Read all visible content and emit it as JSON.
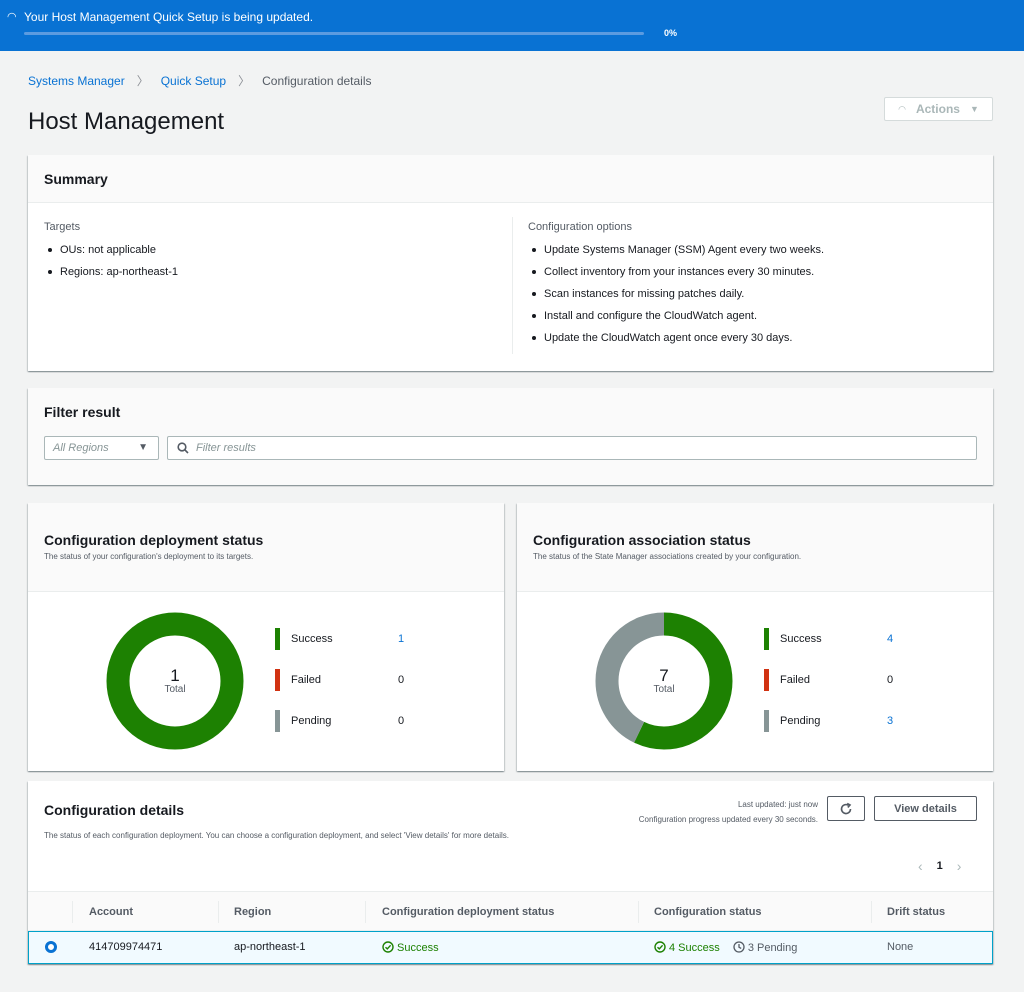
{
  "banner": {
    "message": "Your Host Management Quick Setup is being updated.",
    "progress_text": "0%",
    "progress": 0
  },
  "breadcrumb": [
    "Systems Manager",
    "Quick Setup",
    "Configuration details"
  ],
  "page_title": "Host Management",
  "actions_label": "Actions",
  "summary": {
    "title": "Summary",
    "targets_label": "Targets",
    "targets": [
      "OUs: not applicable",
      "Regions: ap-northeast-1"
    ],
    "options_label": "Configuration options",
    "options": [
      "Update Systems Manager (SSM) Agent every two weeks.",
      "Collect inventory from your instances every 30 minutes.",
      "Scan instances for missing patches daily.",
      "Install and configure the CloudWatch agent.",
      "Update the CloudWatch agent once every 30 days."
    ]
  },
  "filter": {
    "title": "Filter result",
    "region_placeholder": "All Regions",
    "search_placeholder": "Filter results"
  },
  "deployment_status": {
    "title": "Configuration deployment status",
    "subtitle": "The status of your configuration's deployment to its targets.",
    "total": "1",
    "total_label": "Total",
    "success_label": "Success",
    "success": 1,
    "failed_label": "Failed",
    "failed": 0,
    "pending_label": "Pending",
    "pending": 0
  },
  "association_status": {
    "title": "Configuration association status",
    "subtitle": "The status of the State Manager associations created by your configuration.",
    "total": "7",
    "total_label": "Total",
    "success_label": "Success",
    "success": 4,
    "failed_label": "Failed",
    "failed": 0,
    "pending_label": "Pending",
    "pending": 3
  },
  "colors": {
    "success": "#1d8102",
    "failed": "#d13212",
    "pending": "#879596",
    "accent": "#0972d3"
  },
  "details": {
    "title": "Configuration details",
    "description": "The status of each configuration deployment. You can choose a configuration deployment, and select 'View details' for more details.",
    "last_updated": "Last updated: just now",
    "progress_note": "Configuration progress updated every 30 seconds.",
    "view_details_label": "View details",
    "page": "1",
    "columns": [
      "Account",
      "Region",
      "Configuration deployment status",
      "Configuration status",
      "Drift status"
    ],
    "rows": [
      {
        "account": "414709974471",
        "region": "ap-northeast-1",
        "deployment_status": "Success",
        "config_success": "4 Success",
        "config_pending": "3 Pending",
        "drift": "None"
      }
    ]
  }
}
